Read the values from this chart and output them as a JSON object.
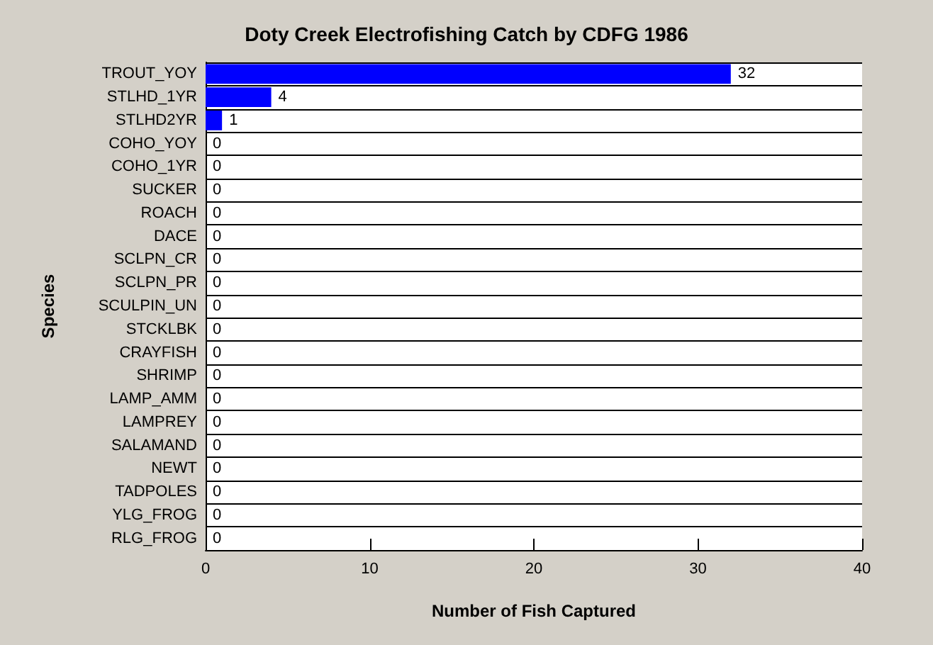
{
  "chart_data": {
    "type": "bar",
    "orientation": "horizontal",
    "title": "Doty Creek Electrofishing Catch by CDFG 1986",
    "xlabel": "Number of Fish Captured",
    "ylabel": "Species",
    "categories": [
      "TROUT_YOY",
      "STLHD_1YR",
      "STLHD2YR",
      "COHO_YOY",
      "COHO_1YR",
      "SUCKER",
      "ROACH",
      "DACE",
      "SCLPN_CR",
      "SCLPN_PR",
      "SCULPIN_UN",
      "STCKLBK",
      "CRAYFISH",
      "SHRIMP",
      "LAMP_AMM",
      "LAMPREY",
      "SALAMAND",
      "NEWT",
      "TADPOLES",
      "YLG_FROG",
      "RLG_FROG"
    ],
    "values": [
      32,
      4,
      1,
      0,
      0,
      0,
      0,
      0,
      0,
      0,
      0,
      0,
      0,
      0,
      0,
      0,
      0,
      0,
      0,
      0,
      0
    ],
    "color": "#0000ff",
    "xlim": [
      0,
      40
    ],
    "xticks": [
      0,
      10,
      20,
      30,
      40
    ],
    "data_labels": true,
    "grid": "y"
  }
}
